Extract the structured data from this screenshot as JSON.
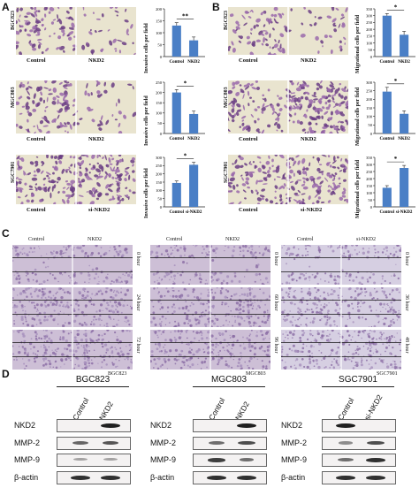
{
  "panels": {
    "A": "A",
    "B": "B",
    "C": "C",
    "D": "D"
  },
  "colors": {
    "bar": "#4a7fc6",
    "stain": "#7a4a8c",
    "scratch": "#c8b8d8"
  },
  "panelA": {
    "rows": [
      {
        "cell": "BGC823",
        "left": "Control",
        "right": "NKD2",
        "ylabel": "Invasive cells per field",
        "sig": "**"
      },
      {
        "cell": "MGC803",
        "left": "Control",
        "right": "NKD2",
        "ylabel": "Invasive cells per field",
        "sig": "*"
      },
      {
        "cell": "SGC7901",
        "left": "Control",
        "right": "si-NKD2",
        "ylabel": "Invasive cells per field",
        "sig": "*"
      }
    ]
  },
  "panelB": {
    "rows": [
      {
        "cell": "BGC823",
        "left": "Control",
        "right": "NKD2",
        "ylabel": "Migrational cells per field",
        "sig": "*"
      },
      {
        "cell": "MGC803",
        "left": "Control",
        "right": "NKD2",
        "ylabel": "Migrational cells per field",
        "sig": "*"
      },
      {
        "cell": "SGC7901",
        "left": "Control",
        "right": "si-NKD2",
        "ylabel": "Migrational cells per field",
        "sig": "*"
      }
    ]
  },
  "chart_data": [
    {
      "type": "bar",
      "panel": "A",
      "cell": "BGC823",
      "categories": [
        "Control",
        "NKD2"
      ],
      "values": [
        130,
        68
      ],
      "errors": [
        12,
        14
      ],
      "ylim": [
        0,
        200
      ],
      "ticks": [
        0,
        50,
        100,
        150,
        200
      ],
      "ylabel": "Invasive cells per field"
    },
    {
      "type": "bar",
      "panel": "A",
      "cell": "MGC803",
      "categories": [
        "Control",
        "NKD2"
      ],
      "values": [
        200,
        95
      ],
      "errors": [
        14,
        14
      ],
      "ylim": [
        0,
        250
      ],
      "ticks": [
        0,
        50,
        100,
        150,
        200,
        250
      ],
      "ylabel": "Invasive cells per field"
    },
    {
      "type": "bar",
      "panel": "A",
      "cell": "SGC7901",
      "categories": [
        "Control",
        "si-NKD2"
      ],
      "values": [
        145,
        255
      ],
      "errors": [
        12,
        15
      ],
      "ylim": [
        0,
        300
      ],
      "ticks": [
        0,
        50,
        100,
        150,
        200,
        250,
        300
      ],
      "ylabel": "Invasive cells per field"
    },
    {
      "type": "bar",
      "panel": "B",
      "cell": "BGC823",
      "categories": [
        "Control",
        "NKD2"
      ],
      "values": [
        300,
        160
      ],
      "errors": [
        15,
        25
      ],
      "ylim": [
        0,
        350
      ],
      "ticks": [
        0,
        50,
        100,
        150,
        200,
        250,
        300,
        350
      ],
      "ylabel": "Migrational cells per field"
    },
    {
      "type": "bar",
      "panel": "B",
      "cell": "MGC803",
      "categories": [
        "Control",
        "NKD2"
      ],
      "values": [
        245,
        115
      ],
      "errors": [
        25,
        18
      ],
      "ylim": [
        0,
        300
      ],
      "ticks": [
        0,
        50,
        100,
        150,
        200,
        250,
        300
      ],
      "ylabel": "Migrational cells per field"
    },
    {
      "type": "bar",
      "panel": "B",
      "cell": "SGC7901",
      "categories": [
        "Control",
        "si-NKD2"
      ],
      "values": [
        135,
        275
      ],
      "errors": [
        15,
        18
      ],
      "ylim": [
        0,
        350
      ],
      "ticks": [
        0,
        50,
        100,
        150,
        200,
        250,
        300,
        350
      ],
      "ylabel": "Migrational cells per field"
    }
  ],
  "panelC": {
    "groups": [
      {
        "cell": "BGC823",
        "left": "Control",
        "right": "NKD2",
        "times": [
          "0 hour",
          "24 hour",
          "72 hour"
        ]
      },
      {
        "cell": "MGC803",
        "left": "Control",
        "right": "NKD2",
        "times": [
          "0 hour",
          "60 hour",
          "96 hour"
        ]
      },
      {
        "cell": "SGC7901",
        "left": "Control",
        "right": "si-NKD2",
        "times": [
          "0 hour",
          "36 hour",
          "48 hour"
        ]
      }
    ]
  },
  "panelD": {
    "blots": [
      {
        "title": "BGC823",
        "cols": [
          "Control",
          "NKD2"
        ],
        "proteins": [
          "NKD2",
          "MMP-2",
          "MMP-9",
          "β-actin"
        ]
      },
      {
        "title": "MGC803",
        "cols": [
          "Control",
          "NKD2"
        ],
        "proteins": [
          "NKD2",
          "MMP-2",
          "MMP-9",
          "β-actin"
        ]
      },
      {
        "title": "SGC7901",
        "cols": [
          "Control",
          "si-NKD2"
        ],
        "proteins": [
          "NKD2",
          "MMP-2",
          "MMP-9",
          "β-actin"
        ]
      }
    ]
  }
}
